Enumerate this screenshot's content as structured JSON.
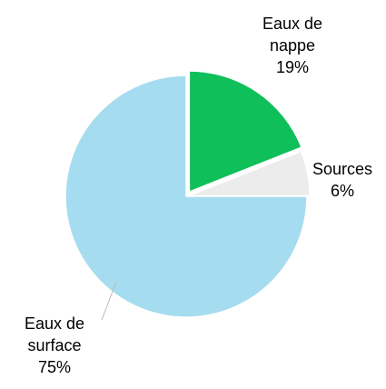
{
  "chart_data": {
    "type": "pie",
    "categories": [
      "Eaux de nappe",
      "Sources",
      "Eaux de surface"
    ],
    "values": [
      19,
      6,
      75
    ],
    "value_labels": [
      "19%",
      "6%",
      "75%"
    ],
    "colors": [
      "#0fbf5a",
      "#ececec",
      "#a6dcef"
    ]
  }
}
